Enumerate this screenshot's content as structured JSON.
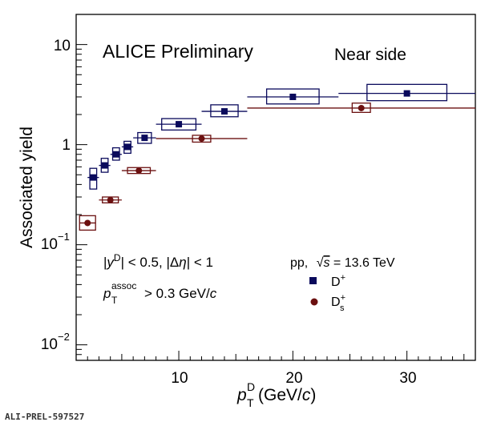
{
  "chart_data": {
    "type": "scatter",
    "title": "ALICE Preliminary",
    "subtitle": "Near side",
    "xlabel": "p_T^D (GeV/c)",
    "ylabel": "Associated yield",
    "xlim": [
      1,
      36
    ],
    "ylim": [
      0.007,
      20
    ],
    "yscale": "log",
    "x_ticks": [
      "10",
      "20",
      "30"
    ],
    "y_ticks": [
      "10^-2",
      "10^-1",
      "1",
      "10"
    ],
    "legend_title": "pp, √s = 13.6 TeV",
    "legend_position": "right",
    "annotations": [
      "|y^D| < 0.5, |Δη| < 1",
      "p_T^assoc > 0.3 GeV/c"
    ],
    "series": [
      {
        "name": "D+",
        "color": "#0a0a5c",
        "marker": "square",
        "points": [
          {
            "x": 2.5,
            "y": 0.47,
            "xerr": 0.5,
            "syst_w": 0.6,
            "syst_lo": 0.36,
            "syst_hi": 0.58
          },
          {
            "x": 3.5,
            "y": 0.62,
            "xerr": 0.5,
            "syst_w": 0.6,
            "syst_lo": 0.53,
            "syst_hi": 0.73
          },
          {
            "x": 4.5,
            "y": 0.8,
            "xerr": 0.5,
            "syst_w": 0.6,
            "syst_lo": 0.7,
            "syst_hi": 0.93
          },
          {
            "x": 5.5,
            "y": 0.95,
            "xerr": 0.5,
            "syst_w": 0.6,
            "syst_lo": 0.82,
            "syst_hi": 1.08
          },
          {
            "x": 7.0,
            "y": 1.17,
            "xerr": 1.0,
            "syst_w": 1.2,
            "syst_lo": 1.03,
            "syst_hi": 1.32
          },
          {
            "x": 10.0,
            "y": 1.6,
            "xerr": 2.0,
            "syst_w": 3.0,
            "syst_lo": 1.4,
            "syst_hi": 1.82
          },
          {
            "x": 14.0,
            "y": 2.15,
            "xerr": 2.0,
            "syst_w": 2.4,
            "syst_lo": 1.9,
            "syst_hi": 2.5
          },
          {
            "x": 20.0,
            "y": 3.0,
            "xerr": 4.0,
            "syst_w": 4.6,
            "syst_lo": 2.55,
            "syst_hi": 3.6
          },
          {
            "x": 30.0,
            "y": 3.25,
            "xerr": 6.0,
            "syst_w": 7.0,
            "syst_lo": 2.75,
            "syst_hi": 4.0
          }
        ]
      },
      {
        "name": "Ds+",
        "color": "#6b1010",
        "marker": "circle",
        "points": [
          {
            "x": 2.0,
            "y": 0.165,
            "xerr": 0.7,
            "syst_w": 1.4,
            "syst_lo": 0.14,
            "syst_hi": 0.195
          },
          {
            "x": 4.0,
            "y": 0.28,
            "xerr": 1.0,
            "syst_w": 1.4,
            "syst_lo": 0.262,
            "syst_hi": 0.3
          },
          {
            "x": 6.5,
            "y": 0.55,
            "xerr": 1.5,
            "syst_w": 2.0,
            "syst_lo": 0.515,
            "syst_hi": 0.59
          },
          {
            "x": 12.0,
            "y": 1.15,
            "xerr": 4.0,
            "syst_w": 1.6,
            "syst_lo": 1.06,
            "syst_hi": 1.24
          },
          {
            "x": 26.0,
            "y": 2.32,
            "xerr": 10.0,
            "syst_w": 1.6,
            "syst_lo": 2.1,
            "syst_hi": 2.6
          }
        ]
      }
    ]
  },
  "footer": "ALI-PREL-597527"
}
